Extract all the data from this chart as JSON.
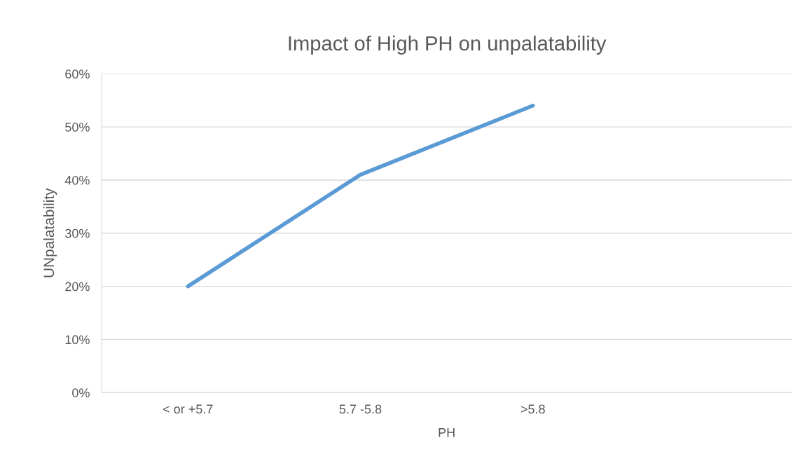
{
  "chart_data": {
    "type": "line",
    "title": "Impact of High PH on unpalatability",
    "xlabel": "PH",
    "ylabel": "UNpalatability",
    "categories": [
      "< or +5.7",
      "5.7 -5.8",
      ">5.8",
      null
    ],
    "series": [
      {
        "color": "#5b9bd5",
        "values": [
          20,
          41,
          54,
          null
        ]
      }
    ],
    "ylim": [
      0,
      60
    ],
    "yticks": [
      {
        "value": 0,
        "label": "0%"
      },
      {
        "value": 10,
        "label": "10%"
      },
      {
        "value": 20,
        "label": "20%"
      },
      {
        "value": 30,
        "label": "30%"
      },
      {
        "value": 40,
        "label": "40%"
      },
      {
        "value": 50,
        "label": "50%"
      },
      {
        "value": 60,
        "label": "60%"
      }
    ],
    "grid": "y",
    "marker": "none",
    "line_style": "solid"
  }
}
